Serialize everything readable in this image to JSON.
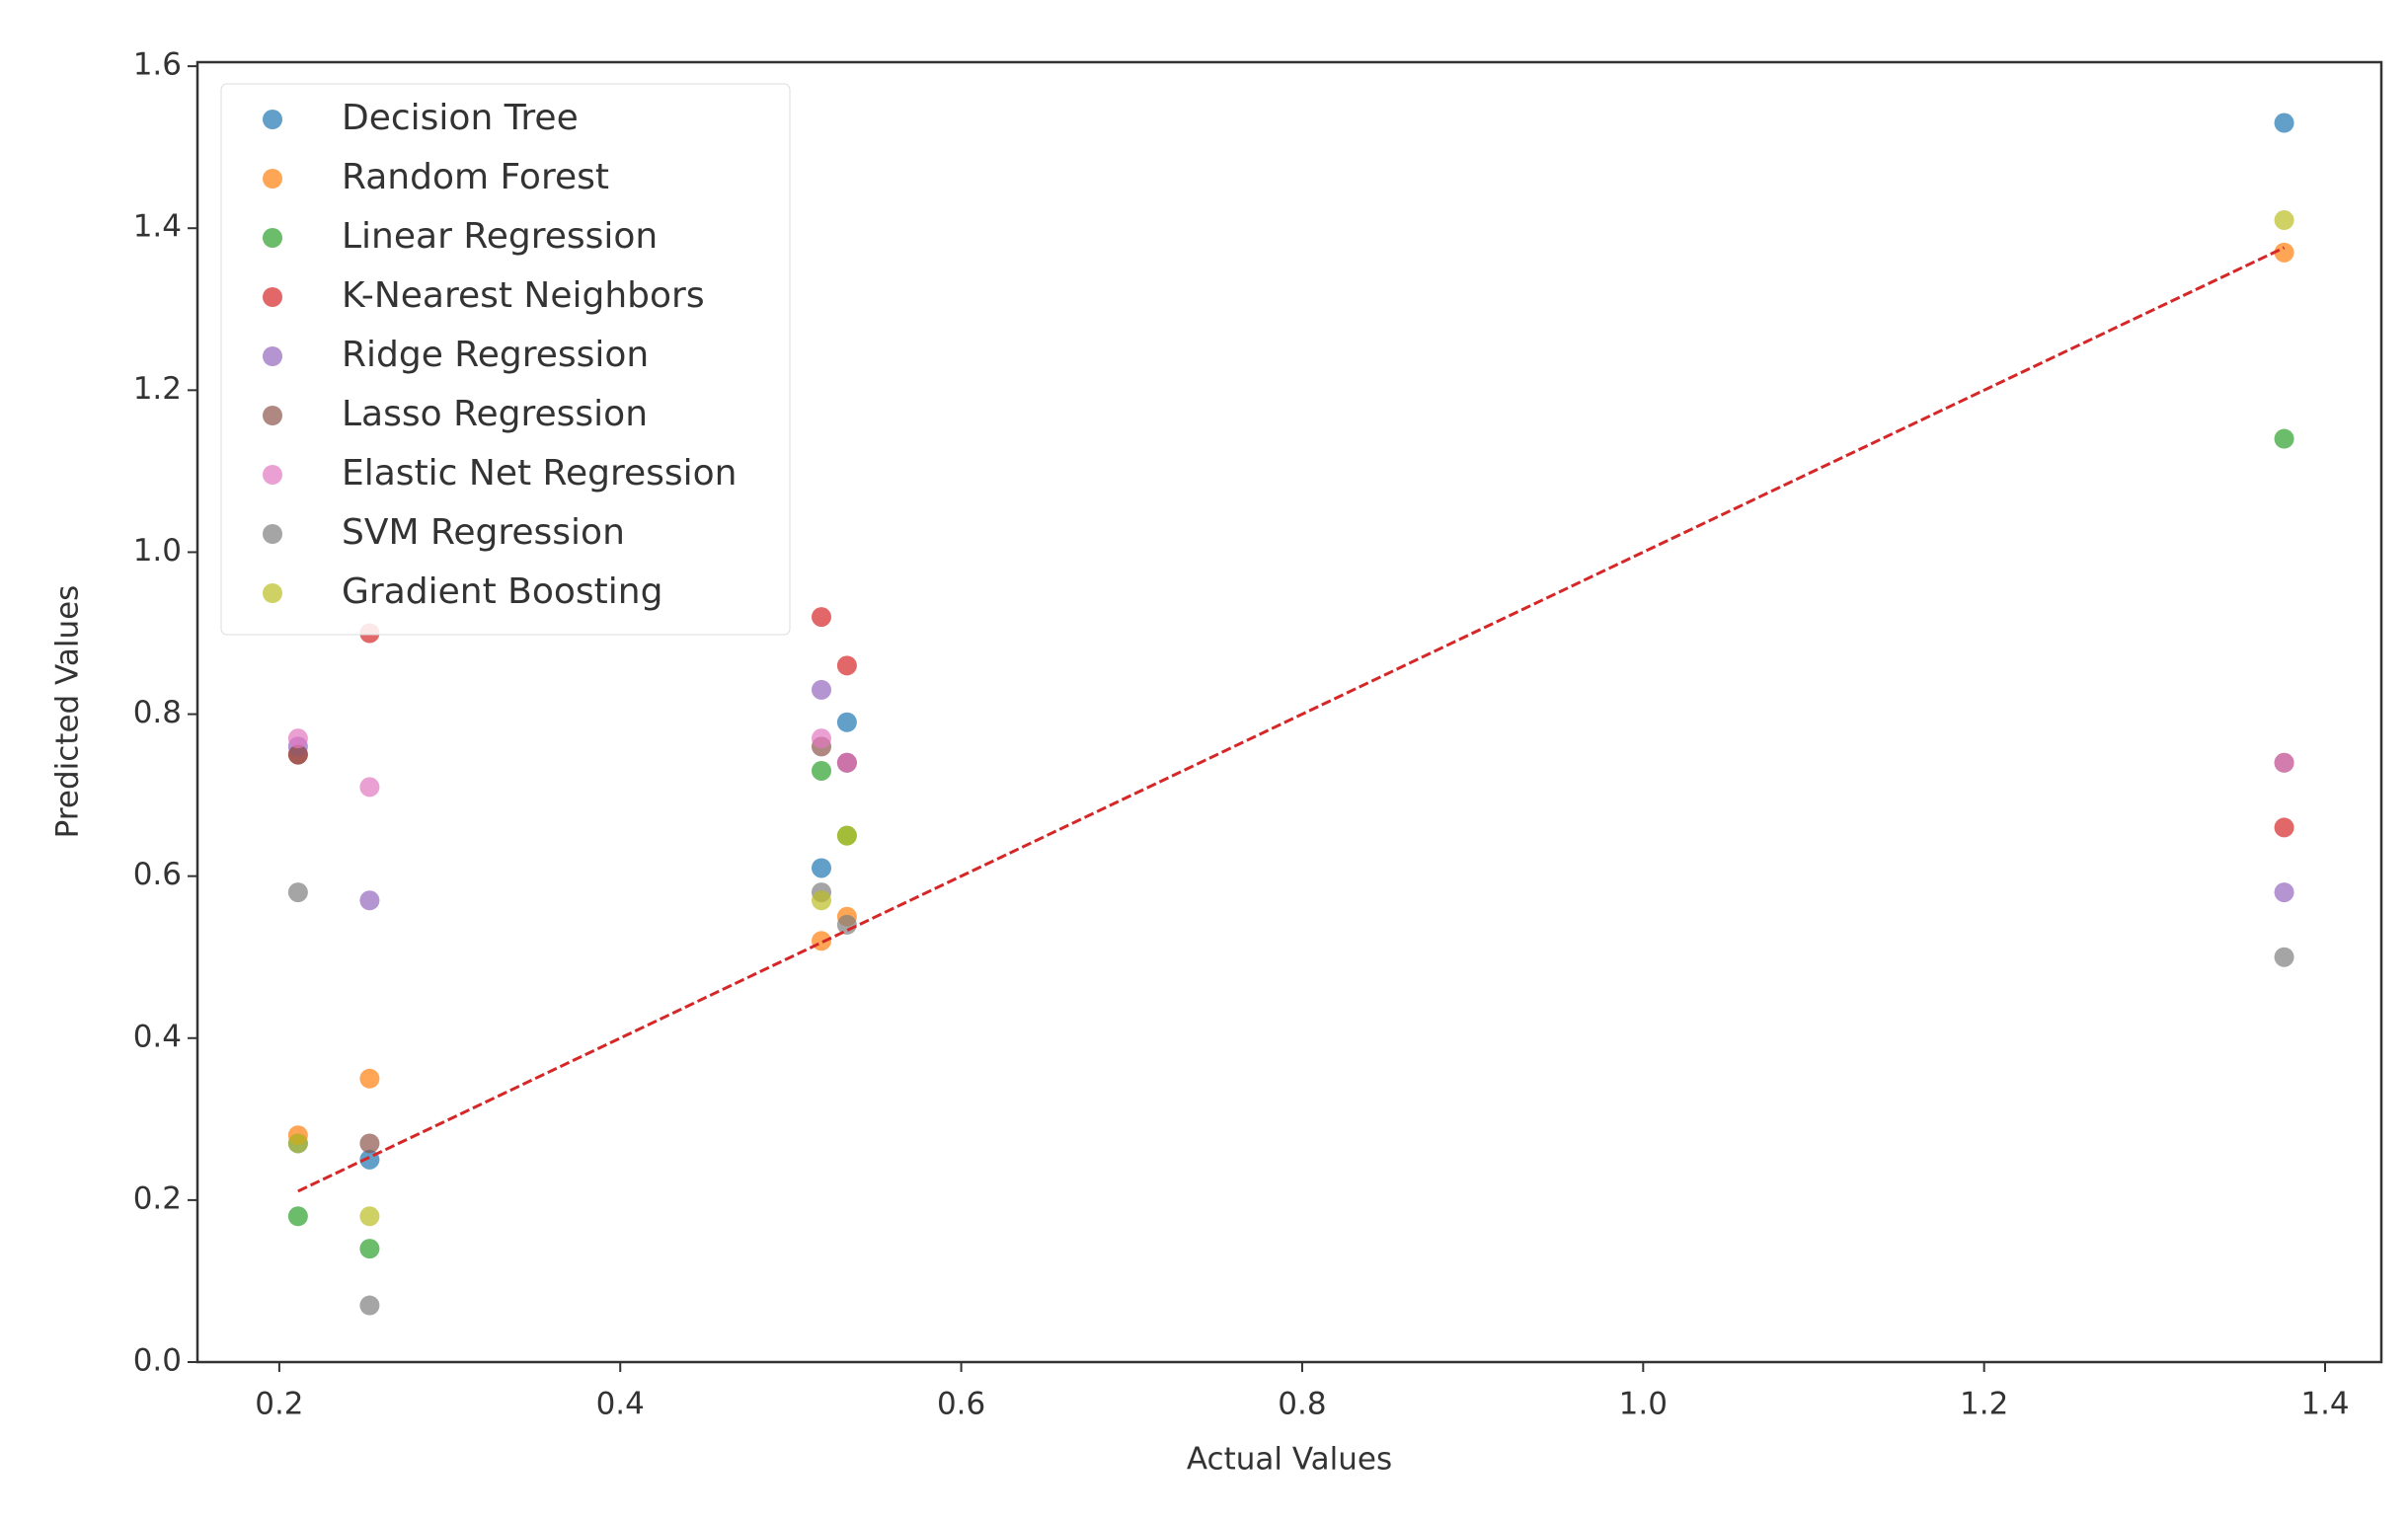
{
  "chart_data": {
    "type": "scatter",
    "xlabel": "Actual Values",
    "ylabel": "Predicted Values",
    "x": [
      0.211,
      0.253,
      0.518,
      0.533,
      1.376
    ],
    "series": [
      {
        "name": "Decision Tree",
        "color": "#1f77b4",
        "values": [
          0.27,
          0.25,
          0.61,
          0.79,
          1.53
        ]
      },
      {
        "name": "Random Forest",
        "color": "#ff7f0e",
        "values": [
          0.28,
          0.35,
          0.52,
          0.55,
          1.37
        ]
      },
      {
        "name": "Linear Regression",
        "color": "#2ca02c",
        "values": [
          0.18,
          0.14,
          0.73,
          0.65,
          1.14
        ]
      },
      {
        "name": "K-Nearest Neighbors",
        "color": "#d62728",
        "values": [
          0.75,
          0.9,
          0.92,
          0.86,
          0.66
        ]
      },
      {
        "name": "Ridge Regression",
        "color": "#9467bd",
        "values": [
          0.76,
          0.57,
          0.83,
          0.74,
          0.58
        ]
      },
      {
        "name": "Lasso Regression",
        "color": "#8c564b",
        "values": [
          0.75,
          0.27,
          0.76,
          0.74,
          0.74
        ]
      },
      {
        "name": "Elastic Net Regression",
        "color": "#e377c2",
        "values": [
          0.77,
          0.71,
          0.77,
          0.74,
          0.74
        ]
      },
      {
        "name": "SVM Regression",
        "color": "#7f7f7f",
        "values": [
          0.58,
          0.07,
          0.58,
          0.54,
          0.5
        ]
      },
      {
        "name": "Gradient Boosting",
        "color": "#bcbd22",
        "values": [
          0.27,
          0.18,
          0.57,
          0.65,
          1.41
        ]
      }
    ],
    "identity_line": {
      "color": "#d62728",
      "x": [
        0.211,
        1.376
      ],
      "y": [
        0.211,
        1.376
      ]
    },
    "xlim": [
      0.152,
      1.433
    ],
    "ylim": [
      0,
      1.605
    ],
    "xticks": [
      0.2,
      0.4,
      0.6,
      0.8,
      {
        "value": 1,
        "label": "1.0"
      },
      1.2,
      1.4
    ],
    "yticks": [
      {
        "value": 0,
        "label": "0.0"
      },
      0.2,
      0.4,
      0.6,
      0.8,
      {
        "value": 1,
        "label": "1.0"
      },
      1.2,
      1.4,
      1.6
    ],
    "legend": "upper left",
    "grid": false
  }
}
